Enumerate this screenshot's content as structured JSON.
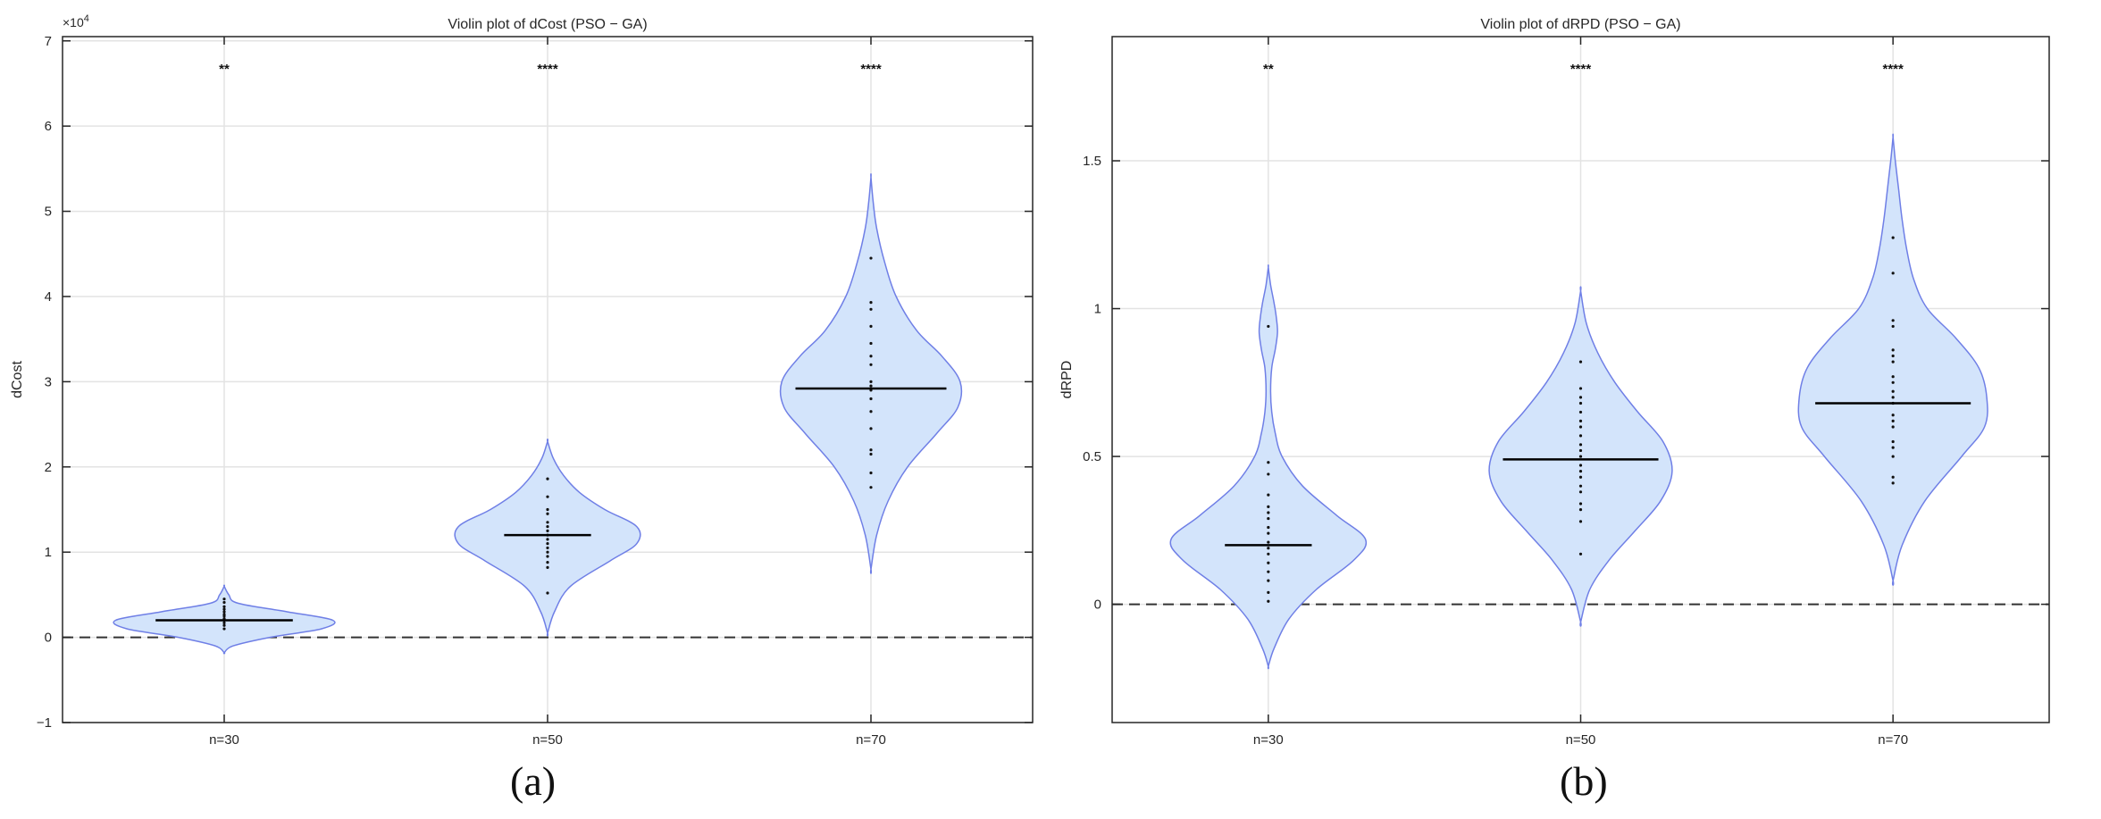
{
  "panel_labels": [
    "(a)",
    "(b)"
  ],
  "chart_data": [
    {
      "type": "violin",
      "title": "Violin plot of dCost (PSO − GA)",
      "xlabel": "",
      "ylabel": "dCost",
      "y_exponent_label": "×10",
      "y_exponent_power": "4",
      "categories": [
        "n=30",
        "n=50",
        "n=70"
      ],
      "yticks": [
        -1,
        0,
        1,
        2,
        3,
        4,
        5,
        6,
        7
      ],
      "ytick_labels": [
        "−1",
        "0",
        "1",
        "2",
        "3",
        "4",
        "5",
        "6",
        "7"
      ],
      "ylim": [
        -1,
        7.05
      ],
      "grid": true,
      "reference_line": 0,
      "significance": [
        "**",
        "****",
        "****"
      ],
      "medians": [
        0.2,
        1.2,
        2.92
      ],
      "violins": [
        {
          "y": [
            -0.18,
            -0.1,
            0,
            0.1,
            0.2,
            0.3,
            0.4,
            0.5,
            0.6
          ],
          "halfwidth": [
            0.0,
            0.08,
            0.4,
            0.85,
            0.95,
            0.55,
            0.12,
            0.04,
            0.0
          ]
        },
        {
          "y": [
            0.05,
            0.3,
            0.6,
            0.9,
            1.1,
            1.3,
            1.5,
            1.7,
            1.9,
            2.1,
            2.3
          ],
          "halfwidth": [
            0.0,
            0.06,
            0.2,
            0.55,
            0.78,
            0.78,
            0.5,
            0.28,
            0.14,
            0.05,
            0.0
          ]
        },
        {
          "y": [
            0.8,
            1.2,
            1.6,
            2.0,
            2.4,
            2.7,
            3.0,
            3.3,
            3.6,
            4.0,
            4.4,
            4.8,
            5.1,
            5.4
          ],
          "halfwidth": [
            0.0,
            0.05,
            0.15,
            0.32,
            0.58,
            0.76,
            0.78,
            0.62,
            0.4,
            0.22,
            0.12,
            0.05,
            0.02,
            0.0
          ]
        }
      ],
      "points": [
        [
          0.1,
          0.14,
          0.17,
          0.2,
          0.22,
          0.25,
          0.27,
          0.3,
          0.33,
          0.36,
          0.41,
          0.45
        ],
        [
          0.52,
          0.82,
          0.88,
          0.95,
          1.0,
          1.05,
          1.1,
          1.15,
          1.2,
          1.25,
          1.3,
          1.35,
          1.45,
          1.5,
          1.65,
          1.86
        ],
        [
          1.76,
          1.93,
          2.15,
          2.2,
          2.45,
          2.65,
          2.8,
          2.9,
          2.95,
          3.0,
          3.2,
          3.3,
          3.45,
          3.65,
          3.85,
          3.93,
          4.45
        ]
      ]
    },
    {
      "type": "violin",
      "title": "Violin plot of dRPD (PSO − GA)",
      "xlabel": "",
      "ylabel": "dRPD",
      "categories": [
        "n=30",
        "n=50",
        "n=70"
      ],
      "yticks": [
        0,
        0.5,
        1,
        1.5
      ],
      "ytick_labels": [
        "0",
        "0.5",
        "1",
        "1.5"
      ],
      "ylim": [
        -0.4,
        1.92
      ],
      "grid": true,
      "reference_line": 0,
      "significance": [
        "**",
        "****",
        "****"
      ],
      "medians": [
        0.2,
        0.49,
        0.68
      ],
      "violins": [
        {
          "y": [
            -0.21,
            -0.15,
            -0.05,
            0.05,
            0.15,
            0.22,
            0.3,
            0.4,
            0.5,
            0.58,
            0.65,
            0.72,
            0.8,
            0.86,
            0.92,
            0.97,
            1.02,
            1.08,
            1.14
          ],
          "halfwidth": [
            0.0,
            0.05,
            0.18,
            0.42,
            0.75,
            0.85,
            0.6,
            0.3,
            0.12,
            0.06,
            0.03,
            0.02,
            0.03,
            0.06,
            0.08,
            0.07,
            0.05,
            0.02,
            0.0
          ]
        },
        {
          "y": [
            -0.06,
            0.05,
            0.15,
            0.25,
            0.35,
            0.45,
            0.55,
            0.65,
            0.75,
            0.85,
            0.95,
            1.06
          ],
          "halfwidth": [
            0.0,
            0.08,
            0.25,
            0.48,
            0.7,
            0.8,
            0.72,
            0.5,
            0.3,
            0.15,
            0.05,
            0.0
          ]
        },
        {
          "y": [
            0.08,
            0.2,
            0.35,
            0.5,
            0.6,
            0.7,
            0.8,
            0.9,
            1.0,
            1.1,
            1.2,
            1.3,
            1.4,
            1.5,
            1.58
          ],
          "halfwidth": [
            0.0,
            0.08,
            0.28,
            0.6,
            0.8,
            0.82,
            0.75,
            0.55,
            0.3,
            0.18,
            0.12,
            0.08,
            0.05,
            0.02,
            0.0
          ]
        }
      ],
      "points": [
        [
          0.01,
          0.04,
          0.08,
          0.11,
          0.14,
          0.17,
          0.19,
          0.21,
          0.24,
          0.26,
          0.29,
          0.31,
          0.33,
          0.37,
          0.44,
          0.48,
          0.94
        ],
        [
          0.17,
          0.28,
          0.32,
          0.34,
          0.38,
          0.4,
          0.43,
          0.45,
          0.47,
          0.5,
          0.52,
          0.54,
          0.57,
          0.6,
          0.62,
          0.65,
          0.68,
          0.7,
          0.73,
          0.82
        ],
        [
          0.41,
          0.43,
          0.5,
          0.53,
          0.55,
          0.6,
          0.62,
          0.64,
          0.68,
          0.7,
          0.72,
          0.75,
          0.77,
          0.82,
          0.84,
          0.86,
          0.94,
          0.96,
          1.12,
          1.24
        ]
      ]
    }
  ]
}
